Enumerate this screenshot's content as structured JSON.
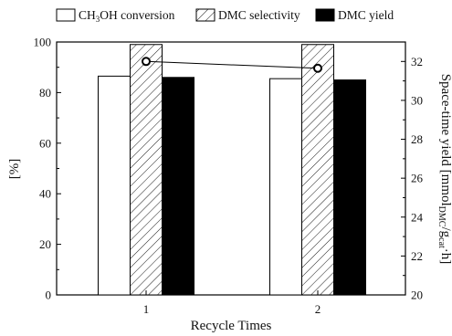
{
  "chart_data": {
    "type": "bar",
    "categories": [
      "1",
      "2"
    ],
    "series": [
      {
        "name_main": "CH",
        "name_sub": "3",
        "name_rest": "OH conversion",
        "values": [
          86.5,
          85.5
        ],
        "fill": "none"
      },
      {
        "name": "DMC selectivity",
        "values": [
          99.0,
          99.0
        ],
        "fill": "hatch"
      },
      {
        "name": "DMC yield",
        "values": [
          86.0,
          85.0
        ],
        "fill": "#000000"
      }
    ],
    "line_series": {
      "values": [
        32.0,
        31.65
      ],
      "axis": "right"
    },
    "xlabel": "Recycle Times",
    "ylabel": "[%]",
    "ylabel_right": {
      "main": "Space-time yield [mmol",
      "sub1": "DMC",
      "mid": "/g",
      "sub2": "cat",
      "rest": "·h]"
    },
    "ylim": [
      0,
      100
    ],
    "ylim_right": [
      20,
      33
    ],
    "y_ticks": [
      0,
      20,
      40,
      60,
      80,
      100
    ],
    "y_ticks_right": [
      20,
      22,
      24,
      26,
      28,
      30,
      32
    ],
    "legend_position": "top",
    "grid": false
  }
}
